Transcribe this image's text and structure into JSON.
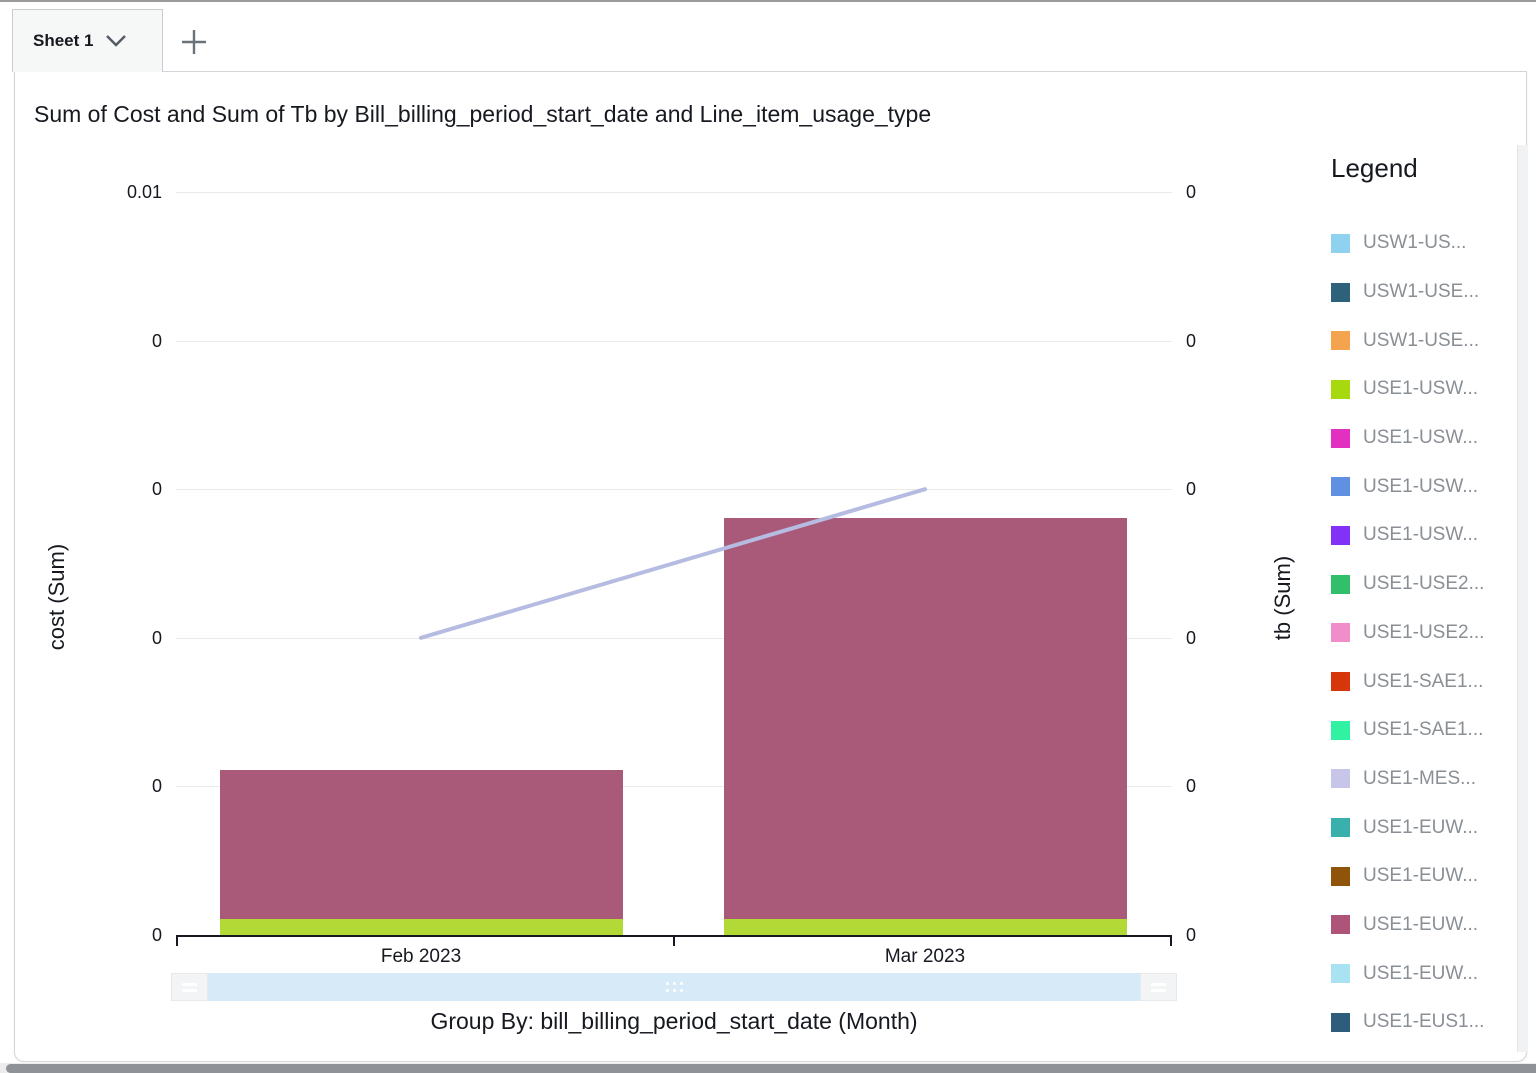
{
  "tab_bar": {
    "active_tab": "Sheet 1"
  },
  "icons": {
    "tab_menu": "chevron-down-icon",
    "add_sheet": "plus-icon",
    "scrollbar_handle": "equals-icon",
    "scrollbar_grip": "dots-grid-icon"
  },
  "legend": {
    "title": "Legend",
    "items": [
      {
        "label": "USW1-US...",
        "color": "#8fd2f0"
      },
      {
        "label": "USW1-USE...",
        "color": "#2d627a"
      },
      {
        "label": "USW1-USE...",
        "color": "#f4a44e"
      },
      {
        "label": "USE1-USW...",
        "color": "#a8d90f"
      },
      {
        "label": "USE1-USW...",
        "color": "#e231c0"
      },
      {
        "label": "USE1-USW...",
        "color": "#5f90e2"
      },
      {
        "label": "USE1-USW...",
        "color": "#8132f6"
      },
      {
        "label": "USE1-USE2...",
        "color": "#31bf6b"
      },
      {
        "label": "USE1-USE2...",
        "color": "#ef8ec9"
      },
      {
        "label": "USE1-SAE1...",
        "color": "#d6360a"
      },
      {
        "label": "USE1-SAE1...",
        "color": "#31f2a2"
      },
      {
        "label": "USE1-MES...",
        "color": "#c8c6e8"
      },
      {
        "label": "USE1-EUW...",
        "color": "#39b0ac"
      },
      {
        "label": "USE1-EUW...",
        "color": "#8f5409"
      },
      {
        "label": "USE1-EUW...",
        "color": "#ad5478"
      },
      {
        "label": "USE1-EUW...",
        "color": "#a9e2f0"
      },
      {
        "label": "USE1-EUS1...",
        "color": "#2d5d7b"
      }
    ]
  },
  "chart_data": {
    "type": "combo_stacked_bar_line",
    "title": "Sum of Cost and Sum of Tb by Bill_billing_period_start_date and Line_item_usage_type",
    "categories": [
      "Feb 2023",
      "Mar 2023"
    ],
    "bar_series": [
      {
        "name": "USE1-USW... (bottom green segment)",
        "color": "#b2d935",
        "stack_fractions_of_plot_height": [
          0.0215,
          0.0215
        ],
        "est_values_cost": [
          0.0002,
          0.0002
        ]
      },
      {
        "name": "USE1-EUW... (main mauve segment)",
        "color": "#a85a78",
        "stack_fractions_of_plot_height": [
          0.2005,
          0.5395
        ],
        "est_values_cost": [
          0.002,
          0.0054
        ]
      }
    ],
    "line_series": [
      {
        "name": "tb (Sum)",
        "color": "#b6bce1",
        "fractions_of_plot_height": [
          0.4,
          0.6
        ]
      }
    ],
    "left_axis": {
      "label": "cost (Sum)",
      "tick_labels_top_to_bottom": [
        "0.01",
        "0",
        "0",
        "0",
        "0",
        "0"
      ],
      "min": 0,
      "max": 0.01
    },
    "right_axis": {
      "label": "tb (Sum)",
      "tick_labels_top_to_bottom": [
        "0",
        "0",
        "0",
        "0",
        "0",
        "0"
      ]
    },
    "x_axis_label": "Group By: bill_billing_period_start_date (Month)",
    "gridlines": true,
    "legend_position": "right"
  }
}
